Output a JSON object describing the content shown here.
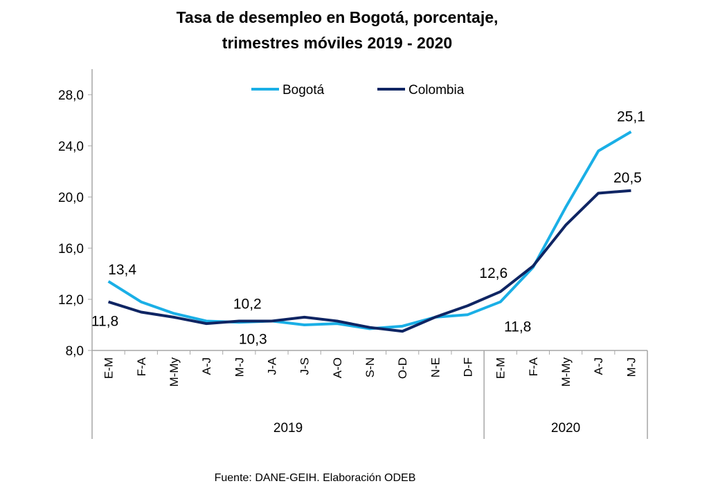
{
  "chart_data": {
    "type": "line",
    "title": [
      "Tasa de desempleo en Bogotá, porcentaje,",
      "trimestres móviles 2019 - 2020"
    ],
    "categories": [
      "E-M",
      "F-A",
      "M-My",
      "A-J",
      "M-J",
      "J-A",
      "J-S",
      "A-O",
      "S-N",
      "O-D",
      "N-E",
      "D-F",
      "E-M",
      "F-A",
      "M-My",
      "A-J",
      "M-J"
    ],
    "groups": [
      {
        "label": "2019",
        "count": 12
      },
      {
        "label": "2020",
        "count": 5
      }
    ],
    "ylim": [
      8,
      30
    ],
    "yticks": [
      8,
      12,
      16,
      20,
      24,
      28
    ],
    "ytick_labels": [
      "8,0",
      "12,0",
      "16,0",
      "20,0",
      "24,0",
      "28,0"
    ],
    "legend_position": "top",
    "grid": false,
    "series": [
      {
        "name": "Bogotá",
        "color": "#1AAFE6",
        "values": [
          13.4,
          11.8,
          10.9,
          10.3,
          10.2,
          10.3,
          10.0,
          10.1,
          9.7,
          9.9,
          10.6,
          10.8,
          11.8,
          14.5,
          19.2,
          23.6,
          25.1
        ]
      },
      {
        "name": "Colombia",
        "color": "#0F2563",
        "values": [
          11.8,
          11.0,
          10.6,
          10.1,
          10.3,
          10.3,
          10.6,
          10.3,
          9.8,
          9.5,
          10.6,
          11.5,
          12.6,
          14.6,
          17.8,
          20.3,
          20.5
        ]
      }
    ],
    "data_labels": [
      {
        "series": 0,
        "index": 0,
        "text": "13,4"
      },
      {
        "series": 1,
        "index": 0,
        "text": "11,8"
      },
      {
        "series": 0,
        "index": 4,
        "text": "10,2"
      },
      {
        "series": 1,
        "index": 4,
        "text": "10,3"
      },
      {
        "series": 1,
        "index": 12,
        "text": "12,6"
      },
      {
        "series": 0,
        "index": 12,
        "text": "11,8"
      },
      {
        "series": 0,
        "index": 16,
        "text": "25,1"
      },
      {
        "series": 1,
        "index": 16,
        "text": "20,5"
      }
    ],
    "source": "Fuente: DANE-GEIH. Elaboración ODEB"
  }
}
